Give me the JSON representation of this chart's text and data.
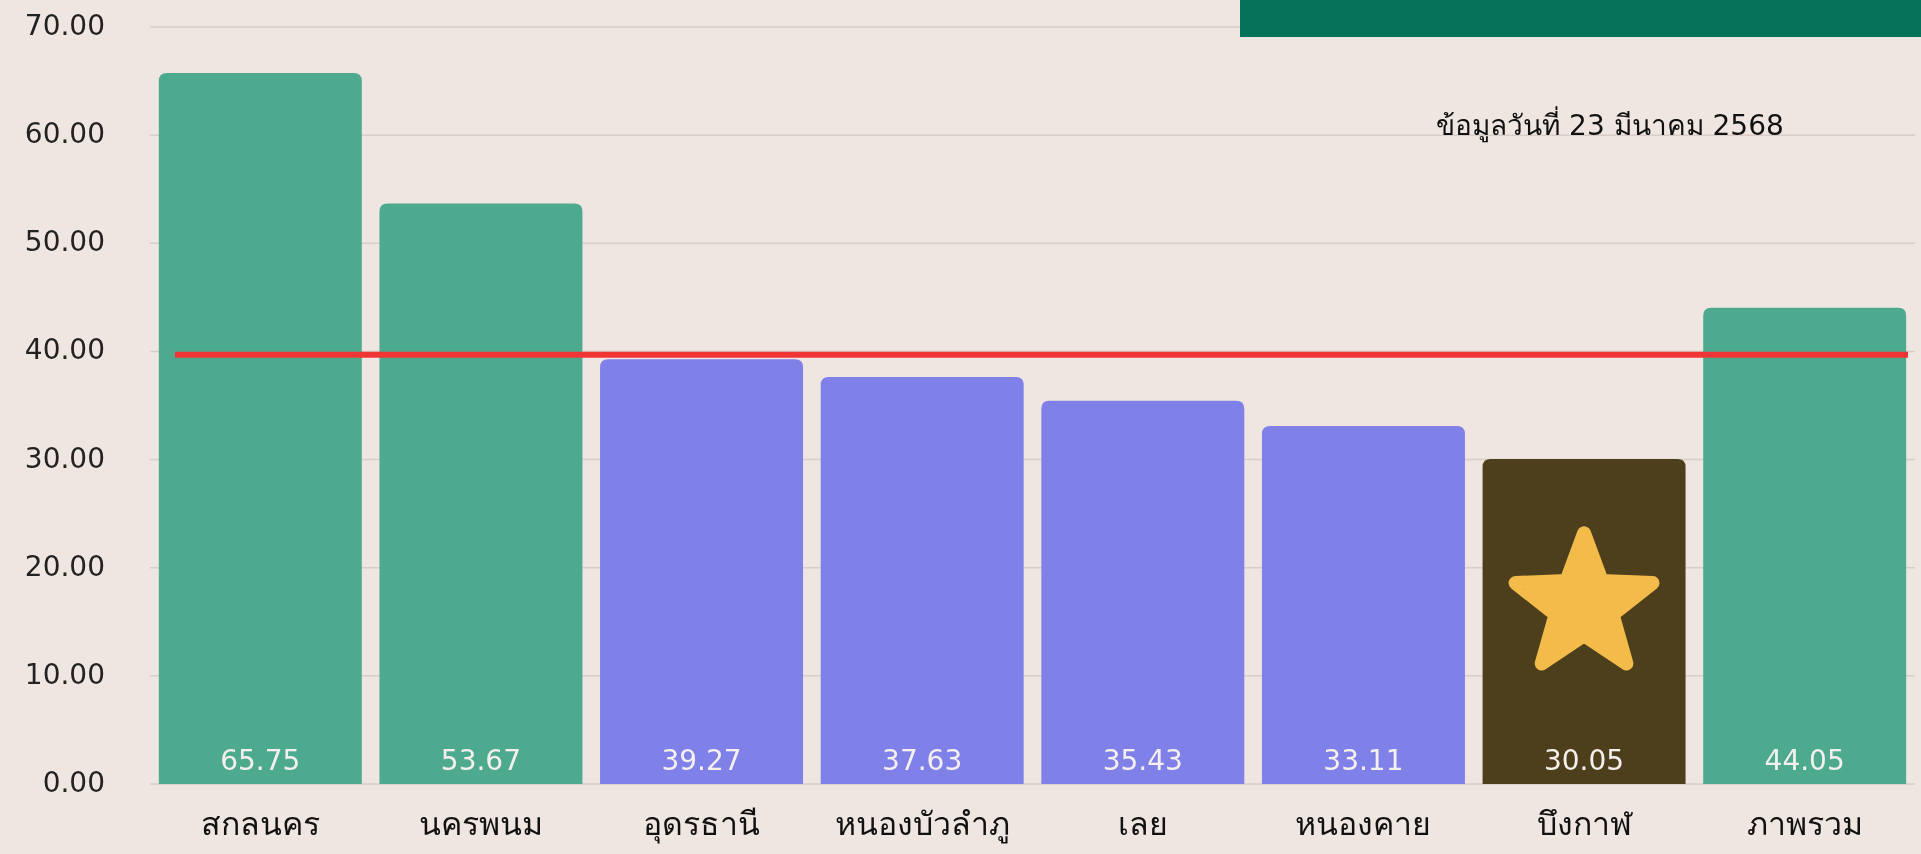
{
  "chart_data": {
    "type": "bar",
    "categories": [
      "สกลนคร",
      "นครพนม",
      "อุดรธานี",
      "หนองบัวลำภู",
      "เลย",
      "หนองคาย",
      "บึงกาฬ",
      "ภาพรวม"
    ],
    "values": [
      65.75,
      53.67,
      39.27,
      37.63,
      35.43,
      33.11,
      30.05,
      44.05
    ],
    "colors": [
      "#4daa8f",
      "#4daa8f",
      "#7f80e8",
      "#7f80e8",
      "#7f80e8",
      "#7f80e8",
      "#4d3f1b",
      "#4daa8f"
    ],
    "ylim": [
      0,
      70
    ],
    "yticks": [
      {
        "value": 0,
        "label": "0.00"
      },
      {
        "value": 10,
        "label": "10.00"
      },
      {
        "value": 20,
        "label": "20.00"
      },
      {
        "value": 30,
        "label": "30.00"
      },
      {
        "value": 40,
        "label": "40.00"
      },
      {
        "value": 50,
        "label": "50.00"
      },
      {
        "value": 60,
        "label": "60.00"
      },
      {
        "value": 70,
        "label": "70.00"
      }
    ],
    "grid": "y",
    "data_labels": true,
    "ref_lines": [
      {
        "axis": "y",
        "value": 39.7,
        "color": "#f03535"
      }
    ],
    "annotations": [
      "ข้อมูลวันที่ 23 มีนาคม 2568"
    ]
  }
}
